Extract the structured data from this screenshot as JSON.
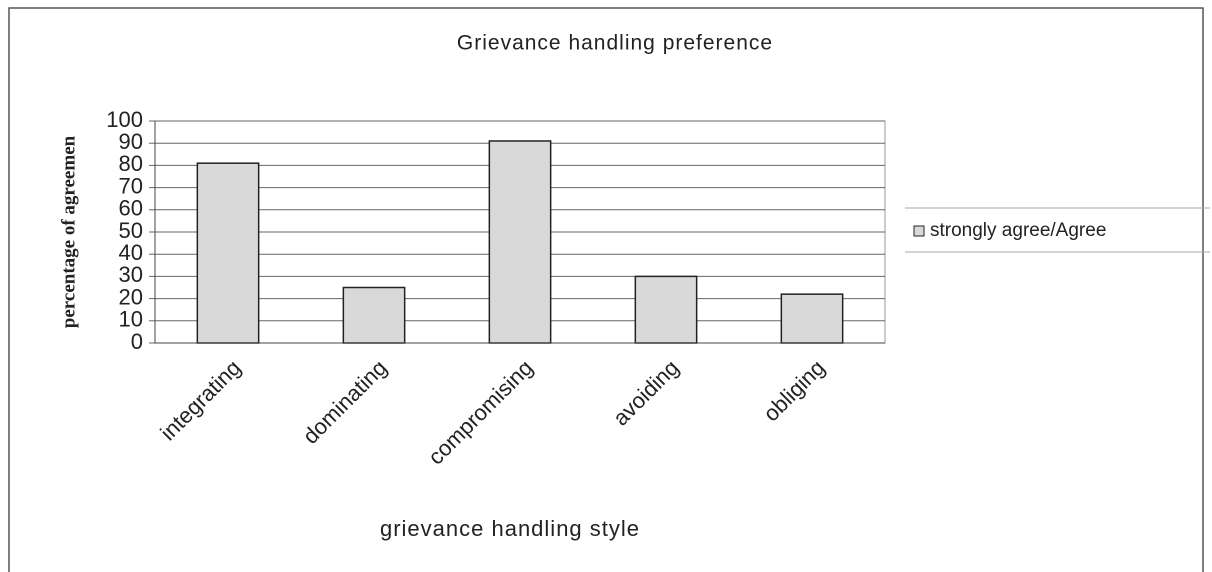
{
  "chart_data": {
    "type": "bar",
    "title": "Grievance handling preference",
    "x_label": "grievance handling style",
    "y_label": "percentage of agreemen",
    "categories": [
      "integrating",
      "dominating",
      "compromising",
      "avoiding",
      "obliging"
    ],
    "series": [
      {
        "name": "strongly agree/Agree",
        "color": "#d9d9d9",
        "values": [
          81,
          25,
          91,
          30,
          22
        ]
      }
    ],
    "ylim": [
      0,
      100
    ],
    "yticks": [
      0,
      10,
      20,
      30,
      40,
      50,
      60,
      70,
      80,
      90,
      100
    ],
    "grid": true,
    "legend": "right"
  }
}
